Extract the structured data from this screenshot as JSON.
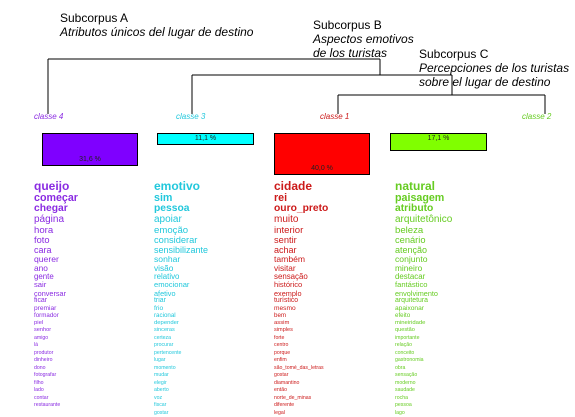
{
  "subcorpora": [
    {
      "title": "Subcorpus A",
      "subtitle_lines": [
        "Atributos únicos del lugar de destino"
      ]
    },
    {
      "title": "Subcorpus B",
      "subtitle_lines": [
        "Aspectos emotivos",
        "de los turistas"
      ]
    },
    {
      "title": "Subcorpus C",
      "subtitle_lines": [
        "Percepciones de los turistas",
        "sobre el lugar de destino"
      ]
    }
  ],
  "classes": [
    {
      "label": "classe 4",
      "color": "#8a2be2",
      "bar_color": "#7f00ff",
      "percent": "31,6 %",
      "share": 0.316,
      "words": [
        "queijo",
        "começar",
        "chegar",
        "página",
        "hora",
        "foto",
        "cara",
        "querer",
        "ano",
        "gente",
        "sair",
        "conversar",
        "ficar",
        "premiar",
        "formador",
        "piel",
        "senhor",
        "amigo",
        "lá",
        "produtor",
        "dinheiro",
        "dono",
        "fotografar",
        "filho",
        "lado",
        "contar",
        "restaurante"
      ]
    },
    {
      "label": "classe 3",
      "color": "#22c8dc",
      "bar_color": "#00ffff",
      "percent": "11,1 %",
      "share": 0.111,
      "words": [
        "emotivo",
        "sim",
        "pessoa",
        "apoiar",
        "emoção",
        "considerar",
        "sensibilizante",
        "sonhar",
        "visão",
        "relativo",
        "emocionar",
        "afetivo",
        "triar",
        "frio",
        "racional",
        "depender",
        "sinceras",
        "certeza",
        "procurar",
        "pertencente",
        "lugar",
        "momento",
        "mudar",
        "elegir",
        "aberto",
        "voz",
        "fiscar",
        "gostar"
      ]
    },
    {
      "label": "classe 1",
      "color": "#cc1a1a",
      "bar_color": "#ff0000",
      "percent": "40,0 %",
      "share": 0.4,
      "words": [
        "cidade",
        "rei",
        "ouro_preto",
        "muito",
        "interior",
        "sentir",
        "achar",
        "também",
        "visitar",
        "sensação",
        "histórico",
        "exemplo",
        "turístico",
        "mesmo",
        "bem",
        "assim",
        "simples",
        "forte",
        "centro",
        "porque",
        "enfim",
        "são_tomé_das_letras",
        "gostar",
        "diamantino",
        "então",
        "norte_de_minas",
        "diferente",
        "legal"
      ]
    },
    {
      "label": "classe 2",
      "color": "#66cc22",
      "bar_color": "#80ff00",
      "percent": "17,1 %",
      "share": 0.171,
      "words": [
        "natural",
        "paisagem",
        "atributo",
        "arquitetônico",
        "beleza",
        "cenário",
        "atenção",
        "conjunto",
        "mineiro",
        "destacar",
        "fantástico",
        "envolvimento",
        "arquitetura",
        "apaixonar",
        "efeito",
        "mineiridade",
        "questão",
        "importante",
        "relação",
        "conceito",
        "gastronomia",
        "obra",
        "sensação",
        "moderno",
        "saudade",
        "rocha",
        "pessoa",
        "lago"
      ]
    }
  ]
}
